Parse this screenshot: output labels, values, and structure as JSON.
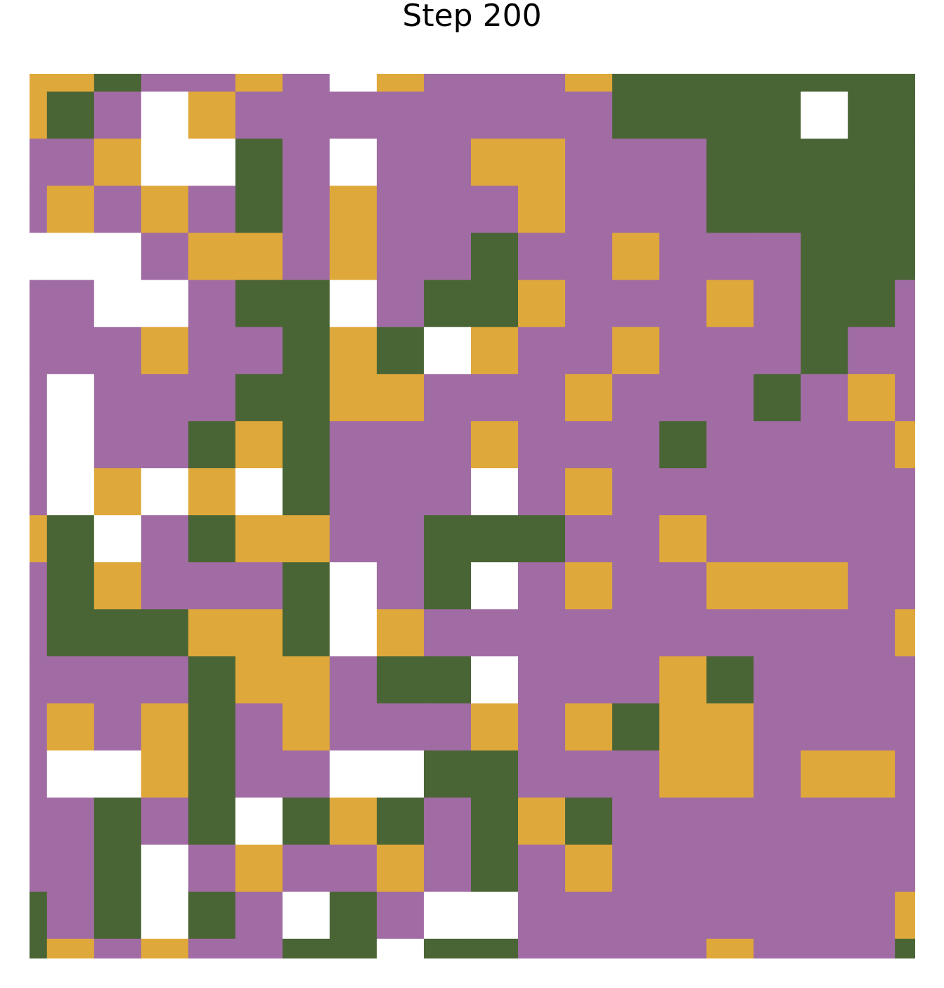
{
  "chart_data": {
    "type": "heatmap",
    "title": "Step 200",
    "grid_size": [
      20,
      20
    ],
    "window": {
      "x": [
        0.63,
        19.43
      ],
      "y": [
        0.62,
        19.42
      ]
    },
    "legend": "none",
    "axes_visible": false,
    "palette": {
      "0": "#ffffff",
      "1": "#4a6535",
      "2": "#a16ca3",
      "3": "#dfa83b"
    },
    "values": [
      [
        3,
        3,
        1,
        2,
        2,
        3,
        2,
        0,
        3,
        2,
        2,
        2,
        3,
        1,
        1,
        1,
        1,
        1,
        1,
        1
      ],
      [
        3,
        1,
        2,
        0,
        3,
        2,
        2,
        2,
        2,
        2,
        2,
        2,
        2,
        1,
        1,
        1,
        1,
        0,
        1,
        1
      ],
      [
        2,
        2,
        3,
        0,
        0,
        1,
        2,
        0,
        2,
        2,
        3,
        3,
        2,
        2,
        2,
        1,
        1,
        1,
        1,
        1
      ],
      [
        2,
        3,
        2,
        3,
        2,
        1,
        2,
        3,
        2,
        2,
        2,
        3,
        2,
        2,
        2,
        1,
        1,
        1,
        1,
        1
      ],
      [
        0,
        0,
        0,
        2,
        3,
        3,
        2,
        3,
        2,
        2,
        1,
        2,
        2,
        3,
        2,
        2,
        2,
        1,
        1,
        1
      ],
      [
        2,
        2,
        0,
        0,
        2,
        1,
        1,
        0,
        2,
        1,
        1,
        3,
        2,
        2,
        2,
        3,
        2,
        1,
        1,
        2
      ],
      [
        2,
        2,
        2,
        3,
        2,
        2,
        1,
        3,
        1,
        0,
        3,
        2,
        2,
        3,
        2,
        2,
        2,
        1,
        2,
        2
      ],
      [
        2,
        0,
        2,
        2,
        2,
        1,
        1,
        3,
        3,
        2,
        2,
        2,
        3,
        2,
        2,
        2,
        1,
        2,
        3,
        2
      ],
      [
        2,
        0,
        2,
        2,
        1,
        3,
        1,
        2,
        2,
        2,
        3,
        2,
        2,
        2,
        1,
        2,
        2,
        2,
        2,
        3
      ],
      [
        2,
        0,
        3,
        0,
        3,
        0,
        1,
        2,
        2,
        2,
        0,
        2,
        3,
        2,
        2,
        2,
        2,
        2,
        2,
        2
      ],
      [
        3,
        1,
        0,
        2,
        1,
        3,
        3,
        2,
        2,
        1,
        1,
        1,
        2,
        2,
        3,
        2,
        2,
        2,
        2,
        2
      ],
      [
        2,
        1,
        3,
        2,
        2,
        2,
        1,
        0,
        2,
        1,
        0,
        2,
        3,
        2,
        2,
        3,
        3,
        3,
        2,
        2
      ],
      [
        2,
        1,
        1,
        1,
        3,
        3,
        1,
        0,
        3,
        2,
        2,
        2,
        2,
        2,
        2,
        2,
        2,
        2,
        2,
        3
      ],
      [
        2,
        2,
        2,
        2,
        1,
        3,
        3,
        2,
        1,
        1,
        0,
        2,
        2,
        2,
        3,
        1,
        2,
        2,
        2,
        2
      ],
      [
        2,
        3,
        2,
        3,
        1,
        2,
        3,
        2,
        2,
        2,
        3,
        2,
        3,
        1,
        3,
        3,
        2,
        2,
        2,
        2
      ],
      [
        2,
        0,
        0,
        3,
        1,
        2,
        2,
        0,
        0,
        1,
        1,
        2,
        2,
        2,
        3,
        3,
        2,
        3,
        3,
        2
      ],
      [
        2,
        2,
        1,
        2,
        1,
        0,
        1,
        3,
        1,
        2,
        1,
        3,
        1,
        2,
        2,
        2,
        2,
        2,
        2,
        2
      ],
      [
        2,
        2,
        1,
        0,
        2,
        3,
        2,
        2,
        3,
        2,
        1,
        2,
        3,
        2,
        2,
        2,
        2,
        2,
        2,
        2
      ],
      [
        1,
        2,
        1,
        0,
        1,
        2,
        0,
        1,
        2,
        0,
        0,
        2,
        2,
        2,
        2,
        2,
        2,
        2,
        2,
        3
      ],
      [
        1,
        3,
        2,
        3,
        2,
        2,
        1,
        1,
        0,
        1,
        1,
        2,
        2,
        2,
        2,
        3,
        2,
        2,
        2,
        1
      ]
    ]
  }
}
